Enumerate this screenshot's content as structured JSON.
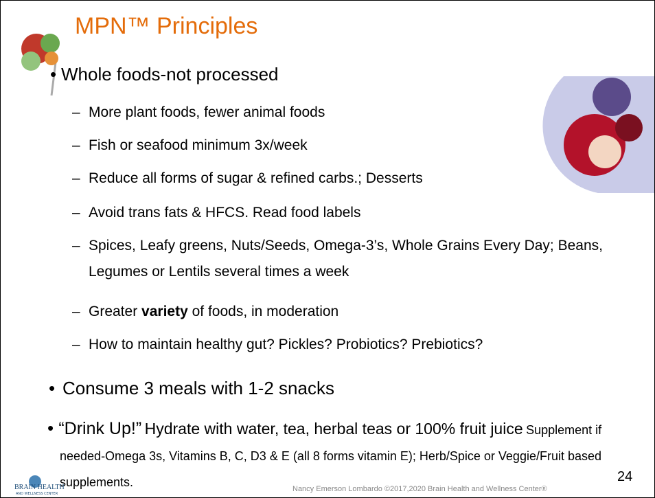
{
  "title": "MPN™ Principles",
  "bullets": [
    {
      "text": "Whole foods-not processed",
      "items": [
        "More plant foods, fewer animal foods",
        "Fish or seafood minimum 3x/week",
        "Reduce all forms of sugar & refined carbs.; Desserts",
        "Avoid trans fats & HFCS.  Read food labels",
        "Spices, Leafy greens, Nuts/Seeds, Omega-3’s, Whole Grains Every Day;  Beans, Legumes or Lentils several times a week",
        {
          "before": "Greater",
          "bold": "variety",
          "after": "of foods, in moderation"
        },
        "How to maintain healthy gut?  Pickles? Probiotics? Prebiotics?"
      ]
    },
    {
      "text": "Consume 3 meals with 1-2 snacks"
    },
    {
      "lead": "“Drink Up!”",
      "text": "Hydrate with water, tea, herbal teas or 100% fruit juice",
      "note": "Supplement if needed-Omega 3s, Vitamins B, C, D3 & E (all 8 forms vitamin E);  Herb/Spice or Veggie/Fruit based supplements."
    }
  ],
  "footer": "Nancy Emerson Lombardo ©2017,2020  Brain Health and Wellness Center®",
  "page_number": "24",
  "logo": {
    "name": "BRAIN HEALTH",
    "sub": "AND WELLNESS CENTER"
  }
}
